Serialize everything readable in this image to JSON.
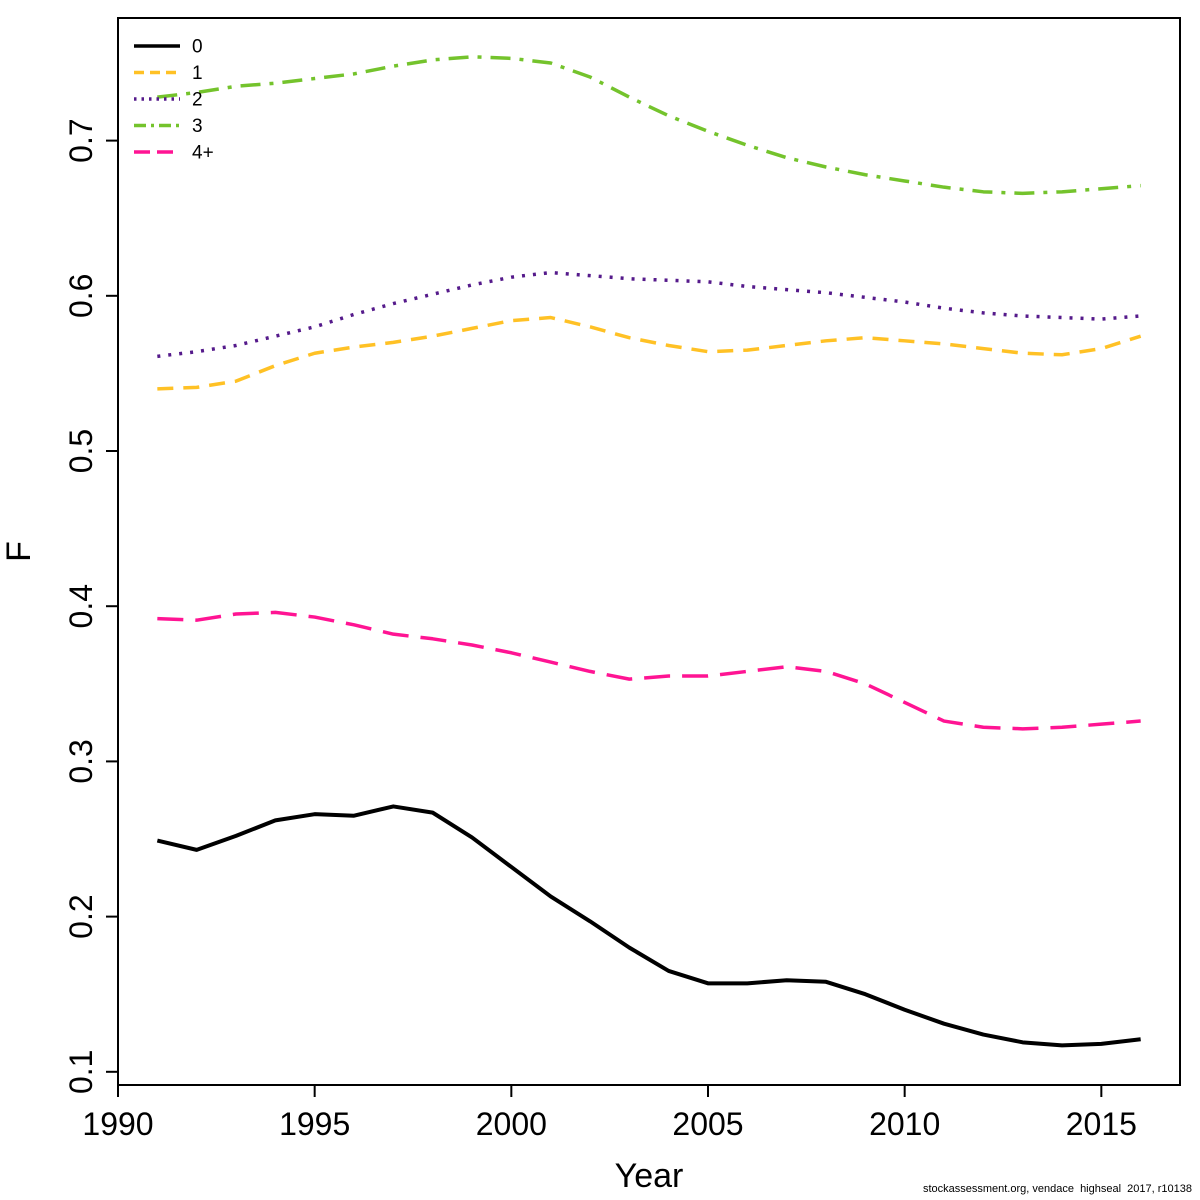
{
  "chart_data": {
    "type": "line",
    "title": "",
    "xlabel": "Year",
    "ylabel": "F",
    "xlim": [
      1990,
      2017
    ],
    "ylim": [
      0.0915,
      0.779
    ],
    "x_ticks": [
      1990,
      1995,
      2000,
      2005,
      2010,
      2015
    ],
    "y_ticks": [
      0.1,
      0.2,
      0.3,
      0.4,
      0.5,
      0.6,
      0.7
    ],
    "grid": false,
    "legend_position": "top-left",
    "x": [
      1991,
      1992,
      1993,
      1994,
      1995,
      1996,
      1997,
      1998,
      1999,
      2000,
      2001,
      2002,
      2003,
      2004,
      2005,
      2006,
      2007,
      2008,
      2009,
      2010,
      2011,
      2012,
      2013,
      2014,
      2015,
      2016
    ],
    "series": [
      {
        "name": "0",
        "color": "#000000",
        "dash": "solid",
        "width": 4,
        "values": [
          0.249,
          0.243,
          0.252,
          0.262,
          0.266,
          0.265,
          0.271,
          0.267,
          0.251,
          0.232,
          0.213,
          0.197,
          0.18,
          0.165,
          0.157,
          0.157,
          0.159,
          0.158,
          0.15,
          0.14,
          0.131,
          0.124,
          0.119,
          0.117,
          0.118,
          0.121
        ]
      },
      {
        "name": "1",
        "color": "#FFC125",
        "dash": "dashed",
        "width": 3.5,
        "values": [
          0.54,
          0.541,
          0.545,
          0.555,
          0.563,
          0.567,
          0.57,
          0.574,
          0.579,
          0.584,
          0.586,
          0.58,
          0.573,
          0.568,
          0.564,
          0.565,
          0.568,
          0.571,
          0.573,
          0.571,
          0.569,
          0.566,
          0.563,
          0.562,
          0.566,
          0.574
        ]
      },
      {
        "name": "2",
        "color": "#551A8B",
        "dash": "dotted",
        "width": 3.5,
        "values": [
          0.561,
          0.564,
          0.568,
          0.574,
          0.58,
          0.588,
          0.595,
          0.601,
          0.607,
          0.612,
          0.615,
          0.613,
          0.611,
          0.61,
          0.609,
          0.606,
          0.604,
          0.602,
          0.599,
          0.596,
          0.592,
          0.589,
          0.587,
          0.586,
          0.585,
          0.587
        ]
      },
      {
        "name": "3",
        "color": "#74C32C",
        "dash": "dashdot",
        "width": 3.5,
        "values": [
          0.728,
          0.731,
          0.735,
          0.737,
          0.74,
          0.743,
          0.748,
          0.752,
          0.754,
          0.753,
          0.75,
          0.741,
          0.728,
          0.716,
          0.706,
          0.697,
          0.689,
          0.683,
          0.678,
          0.674,
          0.67,
          0.667,
          0.666,
          0.667,
          0.669,
          0.671
        ]
      },
      {
        "name": "4+",
        "color": "#FF1493",
        "dash": "longdash",
        "width": 3.5,
        "values": [
          0.392,
          0.391,
          0.395,
          0.396,
          0.393,
          0.388,
          0.382,
          0.379,
          0.375,
          0.37,
          0.364,
          0.358,
          0.353,
          0.355,
          0.355,
          0.358,
          0.361,
          0.358,
          0.35,
          0.338,
          0.326,
          0.322,
          0.321,
          0.322,
          0.324,
          0.326
        ]
      }
    ]
  },
  "footer": {
    "text": "stockassessment.org, vendace  highseal  2017, r10138"
  }
}
